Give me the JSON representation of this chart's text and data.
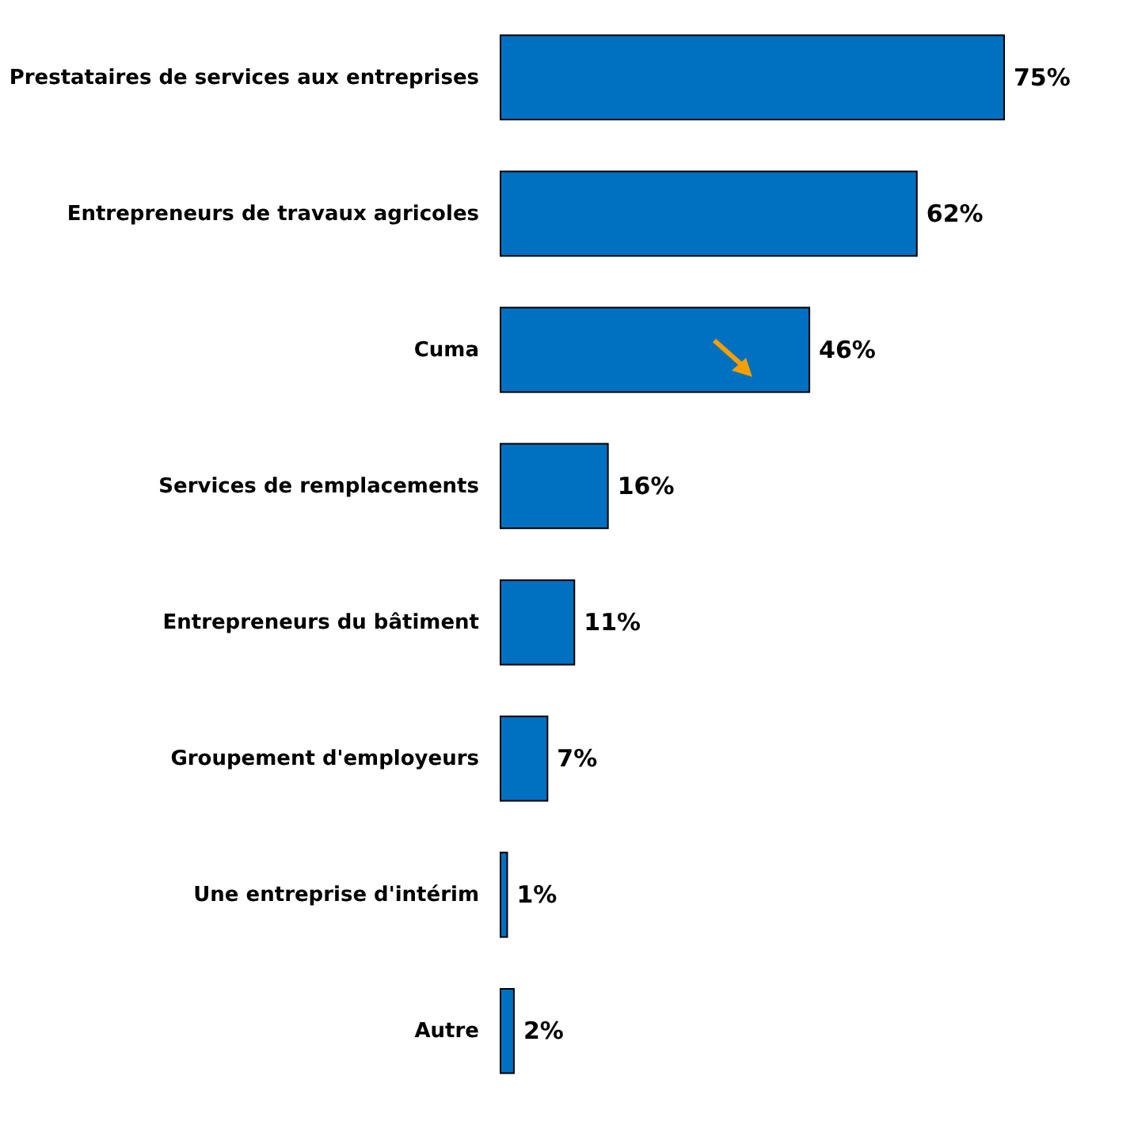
{
  "chart_data": {
    "type": "bar",
    "orientation": "horizontal",
    "categories": [
      "Prestataires de services aux entreprises",
      "Entrepreneurs de travaux agricoles",
      "Cuma",
      "Services de remplacements",
      "Entrepreneurs du bâtiment",
      "Groupement d'employeurs",
      "Une entreprise d'intérim",
      "Autre"
    ],
    "values": [
      75,
      62,
      46,
      16,
      11,
      7,
      1,
      2
    ],
    "value_labels": [
      "75%",
      "62%",
      "46%",
      "16%",
      "11%",
      "7%",
      "1%",
      "2%"
    ],
    "color": "#0070c0"
  }
}
